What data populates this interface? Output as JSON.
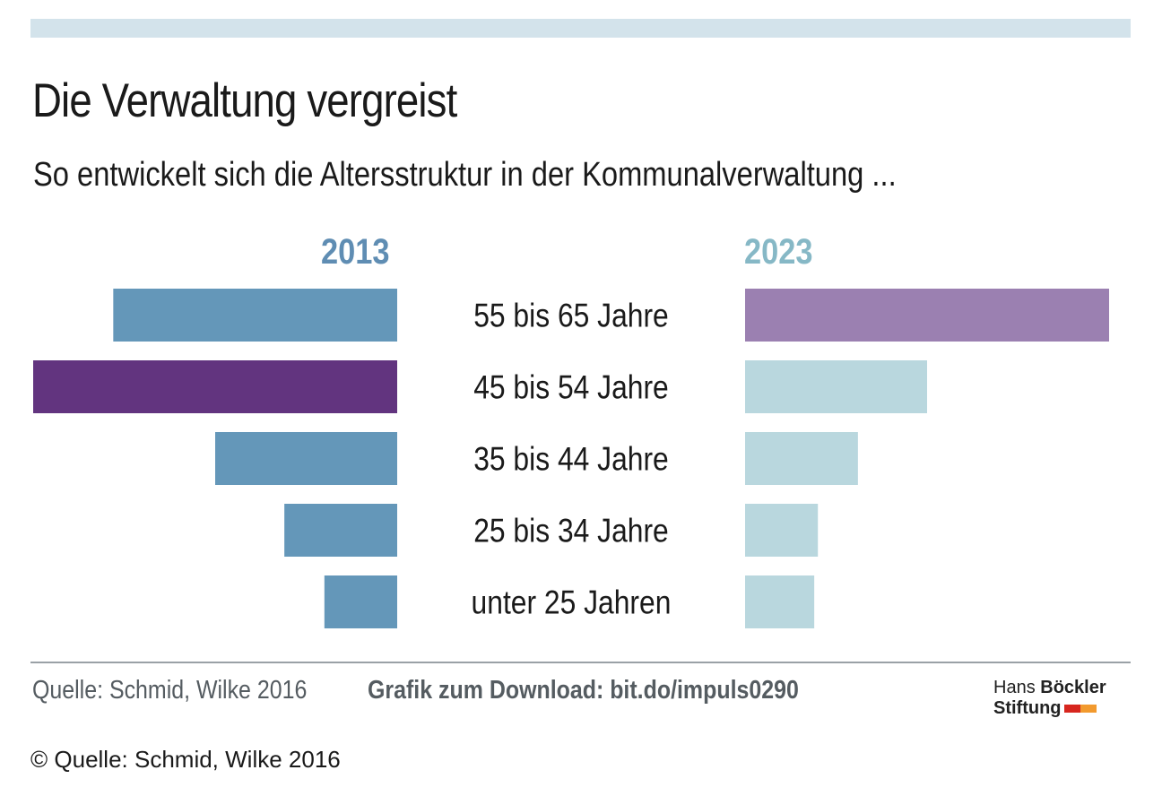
{
  "chart_data": {
    "type": "bar",
    "title": "Die Verwaltung vergreist",
    "subtitle": "So entwickelt sich die Altersstruktur in der Kommunalverwaltung ...",
    "categories": [
      "55 bis 65 Jahre",
      "45 bis 54 Jahre",
      "35 bis 44 Jahre",
      "25 bis 34 Jahre",
      "unter 25 Jahren"
    ],
    "series": [
      {
        "name": "2013",
        "values": [
          78,
          100,
          50,
          31,
          20
        ],
        "color": "#6497b9",
        "highlight_index": 1,
        "highlight_color": "#62347f"
      },
      {
        "name": "2023",
        "values": [
          100,
          50,
          31,
          20,
          19
        ],
        "color": "#b9d7de",
        "highlight_index": 0,
        "highlight_color": "#9b80b1"
      }
    ],
    "ylim": [
      0,
      100
    ],
    "grid": false,
    "legend": "top"
  },
  "footer": {
    "source": "Quelle: Schmid, Wilke 2016",
    "download": "Grafik zum Download: bit.do/impuls0290"
  },
  "logo": {
    "line1_light": "Hans",
    "line1_bold": "Böckler",
    "line2": "Stiftung",
    "colors": [
      "#d7261e",
      "#f29a2e"
    ]
  },
  "copyright": "© Quelle: Schmid, Wilke 2016"
}
